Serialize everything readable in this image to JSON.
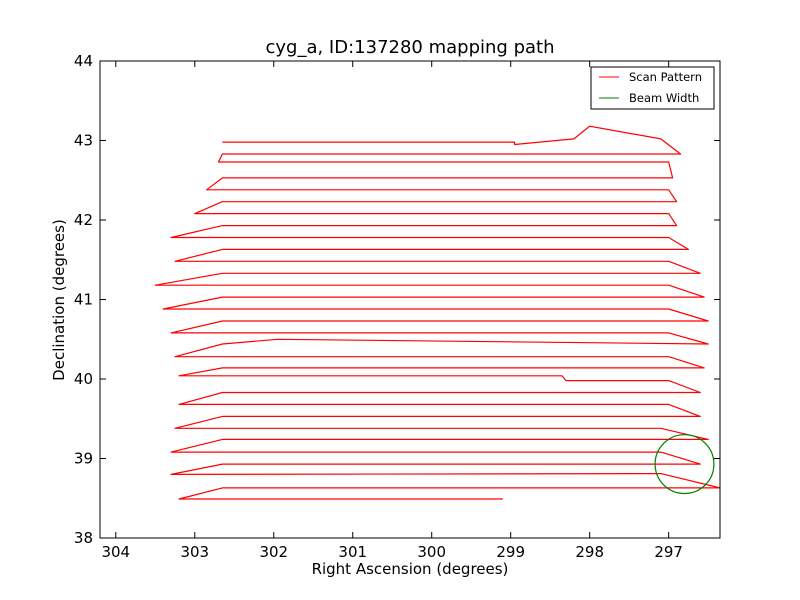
{
  "chart_data": {
    "type": "line",
    "title": "cyg_a, ID:137280 mapping path",
    "xlabel": "Right Ascension (degrees)",
    "ylabel": "Declination (degrees)",
    "xlim": [
      304.2,
      296.35
    ],
    "ylim": [
      38,
      44
    ],
    "x_inverted": true,
    "xticks": [
      304,
      303,
      302,
      301,
      300,
      299,
      298,
      297
    ],
    "yticks": [
      38,
      39,
      40,
      41,
      42,
      43,
      44
    ],
    "grid": false,
    "legend": {
      "placement": "top-right",
      "entries": [
        "Scan Pattern",
        "Beam Width"
      ]
    },
    "series": [
      {
        "name": "Scan Pattern",
        "color": "#ff0000",
        "points": [
          [
            299.1,
            38.49
          ],
          [
            303.2,
            38.49
          ],
          [
            302.65,
            38.63
          ],
          [
            301.0,
            38.63
          ],
          [
            296.35,
            38.63
          ],
          [
            297.1,
            38.81
          ],
          [
            303.3,
            38.8
          ],
          [
            302.65,
            38.93
          ],
          [
            296.6,
            38.93
          ],
          [
            297.1,
            39.08
          ],
          [
            303.3,
            39.08
          ],
          [
            302.65,
            39.24
          ],
          [
            296.5,
            39.24
          ],
          [
            297.1,
            39.38
          ],
          [
            303.25,
            39.38
          ],
          [
            302.65,
            39.53
          ],
          [
            296.6,
            39.53
          ],
          [
            297.0,
            39.68
          ],
          [
            303.2,
            39.68
          ],
          [
            302.65,
            39.83
          ],
          [
            296.6,
            39.83
          ],
          [
            297.0,
            39.98
          ],
          [
            298.3,
            39.98
          ],
          [
            298.35,
            40.04
          ],
          [
            303.2,
            40.04
          ],
          [
            302.65,
            40.14
          ],
          [
            301.9,
            40.14
          ],
          [
            296.55,
            40.14
          ],
          [
            297.0,
            40.28
          ],
          [
            303.25,
            40.28
          ],
          [
            302.65,
            40.44
          ],
          [
            301.95,
            40.5
          ],
          [
            296.5,
            40.44
          ],
          [
            297.0,
            40.58
          ],
          [
            303.3,
            40.58
          ],
          [
            302.65,
            40.73
          ],
          [
            296.5,
            40.73
          ],
          [
            297.0,
            40.88
          ],
          [
            303.4,
            40.88
          ],
          [
            302.65,
            41.03
          ],
          [
            296.55,
            41.03
          ],
          [
            297.0,
            41.18
          ],
          [
            303.5,
            41.18
          ],
          [
            302.65,
            41.33
          ],
          [
            296.6,
            41.33
          ],
          [
            297.0,
            41.48
          ],
          [
            303.25,
            41.48
          ],
          [
            302.65,
            41.63
          ],
          [
            296.75,
            41.63
          ],
          [
            297.0,
            41.78
          ],
          [
            303.3,
            41.78
          ],
          [
            302.65,
            41.93
          ],
          [
            296.9,
            41.93
          ],
          [
            297.0,
            42.08
          ],
          [
            303.0,
            42.08
          ],
          [
            302.65,
            42.23
          ],
          [
            296.9,
            42.23
          ],
          [
            297.0,
            42.38
          ],
          [
            302.85,
            42.38
          ],
          [
            302.65,
            42.53
          ],
          [
            296.95,
            42.53
          ],
          [
            297.0,
            42.73
          ],
          [
            302.7,
            42.73
          ],
          [
            302.65,
            42.83
          ],
          [
            296.85,
            42.83
          ],
          [
            297.1,
            43.02
          ],
          [
            298.0,
            43.18
          ],
          [
            298.2,
            43.02
          ],
          [
            298.95,
            42.95
          ],
          [
            298.95,
            42.98
          ],
          [
            302.65,
            42.98
          ]
        ]
      }
    ],
    "beam": {
      "name": "Beam Width",
      "color": "#007f00",
      "center": [
        296.8,
        38.93
      ],
      "radius_deg": 0.37
    }
  }
}
